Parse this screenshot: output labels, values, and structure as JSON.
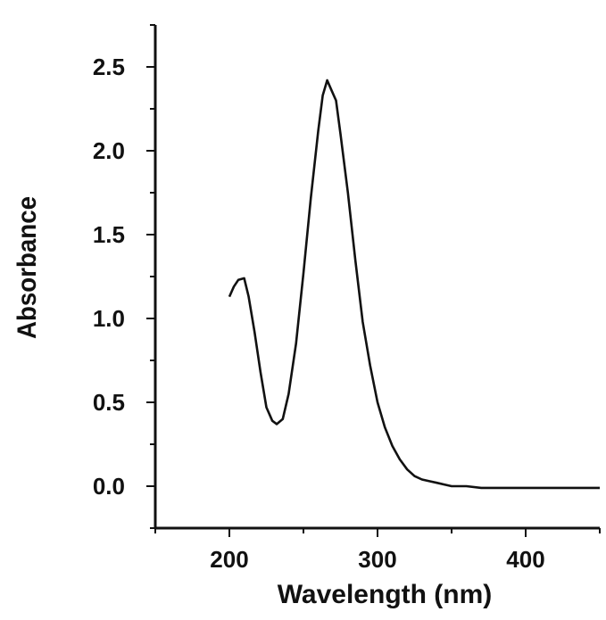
{
  "chart_data": {
    "type": "line",
    "xlabel": "Wavelength (nm)",
    "ylabel": "Absorbance",
    "xlim": [
      150,
      450
    ],
    "ylim": [
      -0.25,
      2.75
    ],
    "xticks": [
      200,
      300,
      400
    ],
    "xtick_labels": [
      "200",
      "300",
      "400"
    ],
    "yticks": [
      0.0,
      0.5,
      1.0,
      1.5,
      2.0,
      2.5
    ],
    "ytick_labels": [
      "0.0",
      "0.5",
      "1.0",
      "1.5",
      "2.0",
      "2.5"
    ],
    "grid": false,
    "series": [
      {
        "color": "#111111",
        "x": [
          200,
          203,
          206,
          210,
          213,
          217,
          221,
          225,
          229,
          232,
          236,
          240,
          245,
          250,
          255,
          260,
          263,
          266,
          269,
          272,
          275,
          280,
          285,
          290,
          295,
          300,
          305,
          310,
          315,
          320,
          325,
          330,
          335,
          340,
          345,
          350,
          360,
          370,
          380,
          390,
          400,
          410,
          420,
          430,
          440,
          450
        ],
        "y": [
          1.13,
          1.19,
          1.23,
          1.24,
          1.13,
          0.92,
          0.68,
          0.47,
          0.39,
          0.37,
          0.4,
          0.55,
          0.85,
          1.27,
          1.72,
          2.12,
          2.33,
          2.42,
          2.36,
          2.3,
          2.1,
          1.75,
          1.35,
          0.98,
          0.72,
          0.5,
          0.35,
          0.24,
          0.16,
          0.1,
          0.06,
          0.04,
          0.03,
          0.02,
          0.01,
          0.0,
          0.0,
          -0.01,
          -0.01,
          -0.01,
          -0.01,
          -0.01,
          -0.01,
          -0.01,
          -0.01,
          -0.01
        ]
      }
    ]
  }
}
